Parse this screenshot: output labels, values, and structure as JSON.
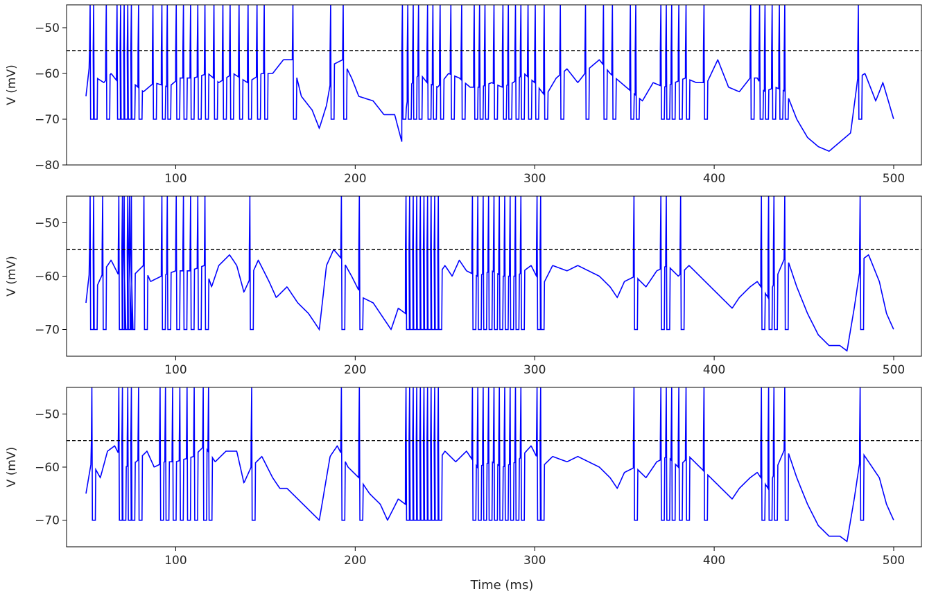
{
  "figure": {
    "xlabel": "Time (ms)",
    "ylabel": "V (mV)",
    "trace_color": "#0000ff",
    "threshold_color": "#000000"
  },
  "chart_data": [
    {
      "type": "line",
      "xlabel": "",
      "ylabel": "V (mV)",
      "xlim": [
        50,
        500
      ],
      "ylim": [
        -80,
        -45
      ],
      "xticks": [
        100,
        200,
        300,
        400,
        500
      ],
      "yticks": [
        -50,
        -60,
        -70,
        -80
      ],
      "threshold": -55,
      "reset": -70,
      "spike_peak": -45,
      "grid": false,
      "spike_times": [
        52,
        54,
        61,
        67,
        69,
        71,
        73,
        75,
        79,
        87,
        92,
        95,
        100,
        104,
        108,
        112,
        116,
        121,
        126,
        130,
        135,
        140,
        145,
        149,
        165,
        186,
        193,
        226,
        229,
        232,
        235,
        240,
        243,
        247,
        253,
        259,
        266,
        269,
        272,
        277,
        282,
        285,
        289,
        292,
        296,
        300,
        305,
        314,
        328,
        338,
        343,
        353,
        356,
        370,
        373,
        376,
        380,
        384,
        394,
        420,
        425,
        428,
        432,
        436,
        439,
        480
      ],
      "subthreshold": [
        [
          50,
          -65
        ],
        [
          52,
          -58
        ],
        [
          56,
          -61
        ],
        [
          60,
          -62
        ],
        [
          64,
          -60
        ],
        [
          70,
          -63
        ],
        [
          76,
          -62
        ],
        [
          82,
          -64
        ],
        [
          88,
          -62
        ],
        [
          96,
          -63
        ],
        [
          102,
          -61
        ],
        [
          110,
          -61
        ],
        [
          118,
          -60
        ],
        [
          124,
          -62
        ],
        [
          132,
          -60
        ],
        [
          140,
          -62
        ],
        [
          148,
          -60
        ],
        [
          154,
          -60
        ],
        [
          160,
          -57
        ],
        [
          165,
          -57
        ],
        [
          170,
          -65
        ],
        [
          176,
          -68
        ],
        [
          180,
          -72
        ],
        [
          184,
          -67
        ],
        [
          188,
          -58
        ],
        [
          193,
          -57
        ],
        [
          198,
          -61
        ],
        [
          202,
          -65
        ],
        [
          210,
          -66
        ],
        [
          216,
          -69
        ],
        [
          222,
          -69
        ],
        [
          226,
          -75
        ],
        [
          230,
          -63
        ],
        [
          236,
          -60
        ],
        [
          240,
          -62
        ],
        [
          246,
          -63
        ],
        [
          252,
          -60
        ],
        [
          258,
          -61
        ],
        [
          264,
          -63
        ],
        [
          270,
          -63
        ],
        [
          276,
          -62
        ],
        [
          282,
          -63
        ],
        [
          288,
          -62
        ],
        [
          294,
          -60
        ],
        [
          300,
          -62
        ],
        [
          306,
          -65
        ],
        [
          312,
          -61
        ],
        [
          318,
          -59
        ],
        [
          324,
          -62
        ],
        [
          330,
          -59
        ],
        [
          336,
          -57
        ],
        [
          342,
          -60
        ],
        [
          348,
          -62
        ],
        [
          354,
          -64
        ],
        [
          360,
          -66
        ],
        [
          366,
          -62
        ],
        [
          372,
          -63
        ],
        [
          378,
          -62
        ],
        [
          384,
          -61
        ],
        [
          390,
          -62
        ],
        [
          396,
          -62
        ],
        [
          402,
          -57
        ],
        [
          408,
          -63
        ],
        [
          414,
          -64
        ],
        [
          420,
          -61
        ],
        [
          424,
          -61
        ],
        [
          428,
          -64
        ],
        [
          434,
          -63
        ],
        [
          440,
          -64
        ],
        [
          446,
          -70
        ],
        [
          452,
          -74
        ],
        [
          458,
          -76
        ],
        [
          464,
          -77
        ],
        [
          470,
          -75
        ],
        [
          476,
          -73
        ],
        [
          480,
          -61
        ],
        [
          484,
          -60
        ],
        [
          490,
          -66
        ],
        [
          494,
          -62
        ],
        [
          500,
          -70
        ]
      ]
    },
    {
      "type": "line",
      "xlabel": "",
      "ylabel": "V (mV)",
      "xlim": [
        50,
        500
      ],
      "ylim": [
        -75,
        -45
      ],
      "xticks": [
        100,
        200,
        300,
        400,
        500
      ],
      "yticks": [
        -50,
        -60,
        -70
      ],
      "threshold": -55,
      "reset": -70,
      "spike_peak": -45,
      "grid": false,
      "spike_times": [
        52,
        54,
        59,
        68,
        70,
        71,
        73,
        74,
        75,
        82,
        92,
        95,
        100,
        104,
        108,
        112,
        116,
        141,
        192,
        202,
        228,
        230,
        232,
        234,
        236,
        238,
        240,
        242,
        244,
        246,
        265,
        268,
        271,
        274,
        277,
        280,
        283,
        286,
        289,
        292,
        301,
        303,
        355,
        370,
        373,
        381,
        426,
        430,
        433,
        439,
        481
      ],
      "subthreshold": [
        [
          50,
          -65
        ],
        [
          52,
          -59
        ],
        [
          56,
          -62
        ],
        [
          60,
          -59
        ],
        [
          64,
          -57
        ],
        [
          70,
          -61
        ],
        [
          76,
          -60
        ],
        [
          82,
          -58
        ],
        [
          86,
          -61
        ],
        [
          92,
          -60
        ],
        [
          100,
          -59
        ],
        [
          108,
          -59
        ],
        [
          116,
          -58
        ],
        [
          120,
          -62
        ],
        [
          124,
          -58
        ],
        [
          130,
          -56
        ],
        [
          134,
          -58
        ],
        [
          138,
          -63
        ],
        [
          142,
          -60
        ],
        [
          146,
          -57
        ],
        [
          152,
          -61
        ],
        [
          156,
          -64
        ],
        [
          162,
          -62
        ],
        [
          168,
          -65
        ],
        [
          174,
          -67
        ],
        [
          180,
          -70
        ],
        [
          184,
          -58
        ],
        [
          188,
          -55
        ],
        [
          193,
          -57
        ],
        [
          198,
          -60
        ],
        [
          204,
          -64
        ],
        [
          210,
          -65
        ],
        [
          214,
          -67
        ],
        [
          220,
          -70
        ],
        [
          224,
          -66
        ],
        [
          228,
          -67
        ],
        [
          236,
          -64
        ],
        [
          242,
          -62
        ],
        [
          250,
          -58
        ],
        [
          254,
          -60
        ],
        [
          258,
          -57
        ],
        [
          262,
          -59
        ],
        [
          268,
          -60
        ],
        [
          276,
          -59
        ],
        [
          282,
          -60
        ],
        [
          290,
          -60
        ],
        [
          298,
          -58
        ],
        [
          304,
          -62
        ],
        [
          310,
          -58
        ],
        [
          318,
          -59
        ],
        [
          324,
          -58
        ],
        [
          330,
          -59
        ],
        [
          336,
          -60
        ],
        [
          342,
          -62
        ],
        [
          346,
          -64
        ],
        [
          350,
          -61
        ],
        [
          356,
          -60
        ],
        [
          362,
          -62
        ],
        [
          368,
          -59
        ],
        [
          374,
          -58
        ],
        [
          380,
          -60
        ],
        [
          386,
          -58
        ],
        [
          392,
          -60
        ],
        [
          398,
          -62
        ],
        [
          404,
          -64
        ],
        [
          410,
          -66
        ],
        [
          414,
          -64
        ],
        [
          420,
          -62
        ],
        [
          424,
          -61
        ],
        [
          430,
          -64
        ],
        [
          440,
          -56
        ],
        [
          446,
          -62
        ],
        [
          452,
          -67
        ],
        [
          458,
          -71
        ],
        [
          464,
          -73
        ],
        [
          470,
          -73
        ],
        [
          474,
          -74
        ],
        [
          478,
          -66
        ],
        [
          482,
          -57
        ],
        [
          486,
          -56
        ],
        [
          492,
          -61
        ],
        [
          496,
          -67
        ],
        [
          500,
          -70
        ]
      ]
    },
    {
      "type": "line",
      "xlabel": "Time (ms)",
      "ylabel": "V (mV)",
      "xlim": [
        50,
        500
      ],
      "ylim": [
        -75,
        -45
      ],
      "xticks": [
        100,
        200,
        300,
        400,
        500
      ],
      "yticks": [
        -50,
        -60,
        -70
      ],
      "threshold": -55,
      "reset": -70,
      "spike_peak": -45,
      "grid": false,
      "spike_times": [
        53,
        68,
        70,
        73,
        75,
        79,
        91,
        94,
        98,
        102,
        106,
        110,
        115,
        118,
        142,
        192,
        202,
        228,
        230,
        232,
        234,
        236,
        238,
        240,
        242,
        244,
        246,
        265,
        268,
        271,
        274,
        277,
        280,
        283,
        286,
        289,
        292,
        301,
        303,
        355,
        370,
        373,
        376,
        380,
        384,
        394,
        426,
        430,
        433,
        439,
        481
      ],
      "subthreshold": [
        [
          50,
          -65
        ],
        [
          53,
          -59
        ],
        [
          58,
          -62
        ],
        [
          62,
          -57
        ],
        [
          66,
          -56
        ],
        [
          72,
          -60
        ],
        [
          78,
          -59
        ],
        [
          84,
          -57
        ],
        [
          88,
          -60
        ],
        [
          94,
          -59
        ],
        [
          100,
          -59
        ],
        [
          110,
          -58
        ],
        [
          116,
          -56
        ],
        [
          122,
          -59
        ],
        [
          128,
          -57
        ],
        [
          134,
          -57
        ],
        [
          138,
          -63
        ],
        [
          142,
          -60
        ],
        [
          148,
          -58
        ],
        [
          154,
          -62
        ],
        [
          158,
          -64
        ],
        [
          162,
          -64
        ],
        [
          168,
          -66
        ],
        [
          174,
          -68
        ],
        [
          180,
          -70
        ],
        [
          186,
          -58
        ],
        [
          190,
          -56
        ],
        [
          196,
          -60
        ],
        [
          202,
          -62
        ],
        [
          208,
          -65
        ],
        [
          214,
          -67
        ],
        [
          218,
          -70
        ],
        [
          224,
          -66
        ],
        [
          228,
          -67
        ],
        [
          236,
          -63
        ],
        [
          242,
          -61
        ],
        [
          250,
          -57
        ],
        [
          256,
          -59
        ],
        [
          262,
          -57
        ],
        [
          268,
          -60
        ],
        [
          276,
          -59
        ],
        [
          282,
          -60
        ],
        [
          290,
          -59
        ],
        [
          298,
          -56
        ],
        [
          304,
          -60
        ],
        [
          310,
          -58
        ],
        [
          318,
          -59
        ],
        [
          324,
          -58
        ],
        [
          330,
          -59
        ],
        [
          336,
          -60
        ],
        [
          342,
          -62
        ],
        [
          346,
          -64
        ],
        [
          350,
          -61
        ],
        [
          356,
          -60
        ],
        [
          362,
          -62
        ],
        [
          368,
          -59
        ],
        [
          374,
          -58
        ],
        [
          380,
          -60
        ],
        [
          386,
          -58
        ],
        [
          392,
          -60
        ],
        [
          398,
          -62
        ],
        [
          404,
          -64
        ],
        [
          410,
          -66
        ],
        [
          414,
          -64
        ],
        [
          420,
          -62
        ],
        [
          424,
          -61
        ],
        [
          430,
          -64
        ],
        [
          440,
          -56
        ],
        [
          446,
          -62
        ],
        [
          452,
          -67
        ],
        [
          458,
          -71
        ],
        [
          464,
          -73
        ],
        [
          470,
          -73
        ],
        [
          474,
          -74
        ],
        [
          478,
          -66
        ],
        [
          482,
          -57
        ],
        [
          486,
          -59
        ],
        [
          492,
          -62
        ],
        [
          496,
          -67
        ],
        [
          500,
          -70
        ]
      ]
    }
  ]
}
